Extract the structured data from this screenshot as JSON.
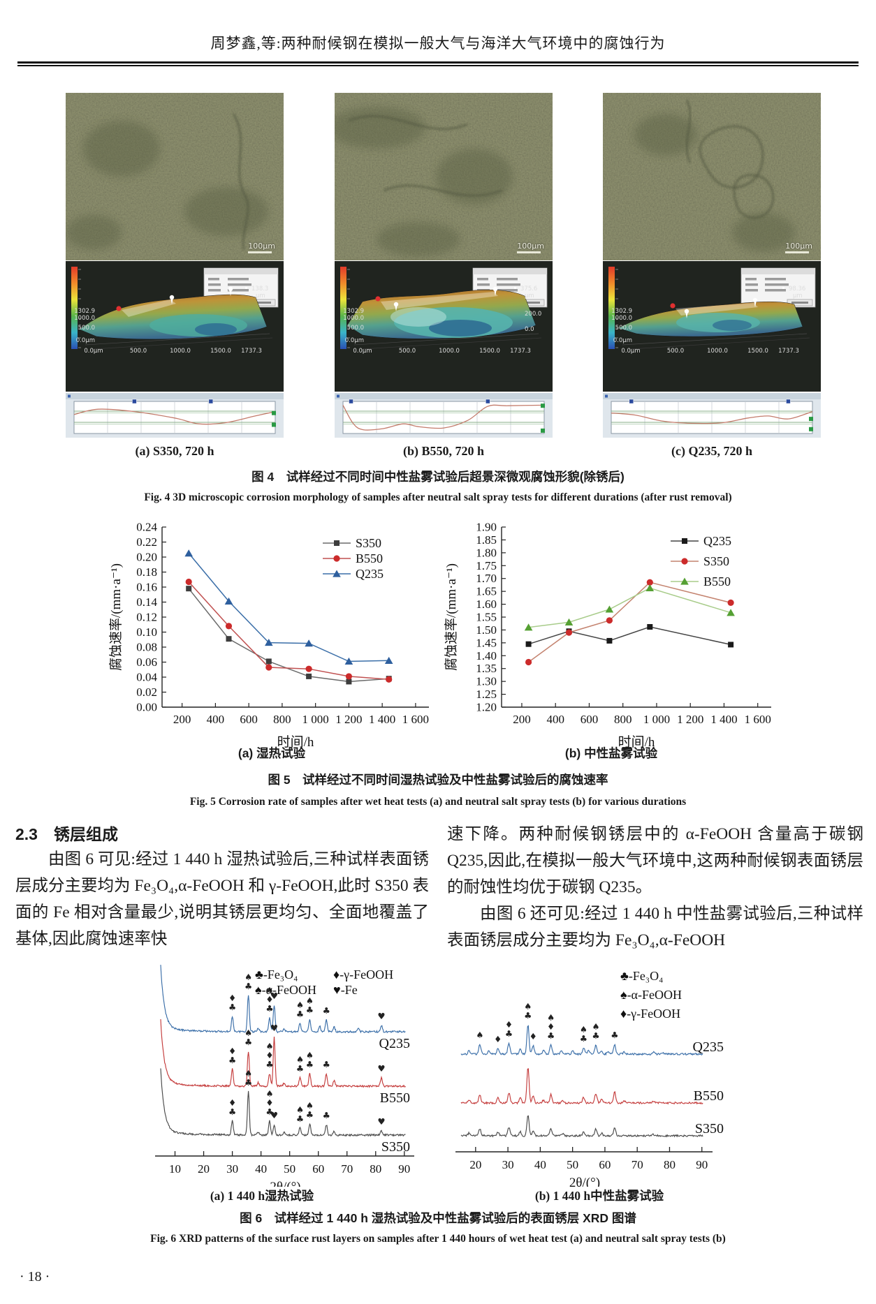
{
  "header": {
    "title": "周梦鑫,等:两种耐候钢在模拟一般大气与海洋大气环境中的腐蚀行为"
  },
  "fig4": {
    "panels": [
      {
        "caption": "(a) S350, 720 h",
        "scale_label": "100μm",
        "axis_left": [
          "1302.9",
          "1000.0",
          "500.0",
          "0.0μm"
        ],
        "axis_bottom": [
          "0.0μm",
          "500.0",
          "1000.0",
          "1500.0",
          "1737.3"
        ],
        "marker_labels": [
          "138.3",
          "μm"
        ],
        "profile": {
          "blue_markers": [
            0.3,
            0.68
          ],
          "green_markers": [
            0.35,
            0.75
          ],
          "curve": [
            [
              0,
              0.4
            ],
            [
              0.12,
              0.22
            ],
            [
              0.3,
              0.3
            ],
            [
              0.5,
              0.52
            ],
            [
              0.62,
              0.72
            ],
            [
              0.75,
              0.68
            ],
            [
              0.9,
              0.45
            ],
            [
              1,
              0.3
            ]
          ]
        }
      },
      {
        "caption": "(b) B550, 720 h",
        "scale_label": "100μm",
        "axis_left": [
          "1302.9",
          "1000.0",
          "500.0",
          "0.0μm"
        ],
        "axis_bottom": [
          "0.0μm",
          "500.0",
          "1000.0",
          "1500.0",
          "1737.3"
        ],
        "marker_labels": [
          "375.6",
          "μm",
          "200.0",
          "0.0"
        ],
        "profile": {
          "blue_markers": [
            0.04,
            0.72
          ],
          "green_markers": [
            0.1,
            0.95
          ],
          "curve": [
            [
              0,
              0.08
            ],
            [
              0.05,
              0.7
            ],
            [
              0.1,
              0.92
            ],
            [
              0.2,
              0.88
            ],
            [
              0.3,
              0.72
            ],
            [
              0.38,
              0.82
            ],
            [
              0.5,
              0.86
            ],
            [
              0.62,
              0.6
            ],
            [
              0.72,
              0.12
            ],
            [
              0.82,
              0.1
            ],
            [
              1,
              0.08
            ]
          ]
        }
      },
      {
        "caption": "(c) Q235, 720 h",
        "scale_label": "100μm",
        "axis_left": [
          "1302.9",
          "1000.0",
          "500.0",
          "0.0μm"
        ],
        "axis_bottom": [
          "0.0μm",
          "500.0",
          "1000.0",
          "1500.0",
          "1737.3"
        ],
        "marker_labels": [
          "98.36",
          "μm"
        ],
        "profile": {
          "blue_markers": [
            0.1,
            0.88
          ],
          "green_markers": [
            0.55,
            0.9
          ],
          "curve": [
            [
              0,
              0.35
            ],
            [
              0.12,
              0.42
            ],
            [
              0.25,
              0.62
            ],
            [
              0.4,
              0.7
            ],
            [
              0.55,
              0.68
            ],
            [
              0.68,
              0.52
            ],
            [
              0.78,
              0.45
            ],
            [
              0.88,
              0.55
            ],
            [
              1,
              0.3
            ]
          ]
        }
      }
    ],
    "caption_cn": "图 4　试样经过不同时间中性盐雾试验后超景深微观腐蚀形貌(除锈后)",
    "caption_en": "Fig. 4   3D microscopic corrosion morphology of samples after neutral salt spray tests for different durations (after rust removal)"
  },
  "fig5": {
    "caption_a": "(a) 湿热试验",
    "caption_b": "(b) 中性盐雾试验",
    "caption_cn": "图 5　试样经过不同时间湿热试验及中性盐雾试验后的腐蚀速率",
    "caption_en": "Fig. 5   Corrosion rate of samples after wet heat tests (a) and neutral salt spray tests (b) for various durations"
  },
  "section": {
    "heading": "2.3　锈层组成",
    "left_para": "由图 6 可见:经过 1 440 h 湿热试验后,三种试样表面锈层成分主要均为 Fe₃O₄,α-FeOOH 和 γ-FeOOH,此时 S350 表面的 Fe 相对含量最少,说明其锈层更均匀、全面地覆盖了基体,因此腐蚀速率快",
    "right_para_1": "速下降。两种耐候钢锈层中的 α-FeOOH 含量高于碳钢 Q235,因此,在模拟一般大气环境中,这两种耐候钢表面锈层的耐蚀性均优于碳钢 Q235。",
    "right_para_2": "由图 6 还可见:经过 1 440 h 中性盐雾试验后,三种试样表面锈层成分主要均为 Fe₃O₄,α-FeOOH"
  },
  "fig6": {
    "caption_a": "(a) 1 440 h湿热试验",
    "caption_b": "(b) 1 440 h中性盐雾试验",
    "caption_cn": "图 6　试样经过 1 440 h 湿热试验及中性盐雾试验后的表面锈层 XRD 图谱",
    "caption_en": "Fig. 6   XRD patterns of the surface rust layers on samples after 1 440 hours of wet heat test (a) and neutral salt spray tests (b)"
  },
  "page_number": "· 18 ·",
  "chart_data": [
    {
      "id": "fig5a",
      "type": "line",
      "title": "(a) 湿热试验",
      "xlabel": "时间/h",
      "ylabel": "腐蚀速率/(mm·a⁻¹)",
      "xlim": [
        80,
        1680
      ],
      "ylim": [
        0,
        0.24
      ],
      "xticks": [
        200,
        400,
        600,
        800,
        1000,
        1200,
        1400,
        1600
      ],
      "xtick_labels": [
        "200",
        "400",
        "600",
        "800",
        "1 000",
        "1 200",
        "1 400",
        "1 600"
      ],
      "ytick_step": 0.02,
      "x": [
        240,
        480,
        720,
        960,
        1200,
        1440
      ],
      "series": [
        {
          "name": "S350",
          "marker": "square",
          "marker_color": "#3d3d3d",
          "line_color": "#6a6a6a",
          "values": [
            0.158,
            0.091,
            0.061,
            0.041,
            0.034,
            0.038
          ]
        },
        {
          "name": "B550",
          "marker": "circle",
          "marker_color": "#cc2b2b",
          "line_color": "#c05050",
          "values": [
            0.167,
            0.108,
            0.053,
            0.051,
            0.041,
            0.037
          ]
        },
        {
          "name": "Q235",
          "marker": "triangle",
          "marker_color": "#2e5f9e",
          "line_color": "#3a6ea8",
          "values": [
            0.205,
            0.141,
            0.086,
            0.085,
            0.061,
            0.062
          ]
        }
      ],
      "grid": false,
      "legend_position": "upper right inside"
    },
    {
      "id": "fig5b",
      "type": "line",
      "title": "(b) 中性盐雾试验",
      "xlabel": "时间/h",
      "ylabel": "腐蚀速率/(mm·a⁻¹)",
      "xlim": [
        80,
        1680
      ],
      "ylim": [
        1.2,
        1.9
      ],
      "xticks": [
        200,
        400,
        600,
        800,
        1000,
        1200,
        1400,
        1600
      ],
      "xtick_labels": [
        "200",
        "400",
        "600",
        "800",
        "1 000",
        "1 200",
        "1 400",
        "1 600"
      ],
      "ytick_step": 0.05,
      "x": [
        240,
        480,
        720,
        960,
        1440
      ],
      "series": [
        {
          "name": "Q235",
          "marker": "square",
          "marker_color": "#1a1a1a",
          "line_color": "#444444",
          "values": [
            1.445,
            1.495,
            1.458,
            1.512,
            1.443
          ]
        },
        {
          "name": "S350",
          "marker": "circle",
          "marker_color": "#cc2b2b",
          "line_color": "#c4836f",
          "values": [
            1.375,
            1.49,
            1.537,
            1.685,
            1.606
          ]
        },
        {
          "name": "B550",
          "marker": "triangle",
          "marker_color": "#55a033",
          "line_color": "#a8cc8a",
          "values": [
            1.51,
            1.53,
            1.58,
            1.663,
            1.567
          ]
        }
      ],
      "grid": false,
      "legend_position": "upper right inside"
    },
    {
      "id": "fig6a",
      "type": "xrd",
      "title": "(a) 1 440 h湿热试验",
      "xlabel": "2θ/(°)",
      "xlim": [
        5,
        92
      ],
      "xticks": [
        10,
        20,
        30,
        40,
        50,
        60,
        70,
        80,
        90
      ],
      "left_spike": 90,
      "traces": [
        {
          "name": "Q235",
          "color": "#3a6ea8",
          "peaks": [
            [
              30,
              22
            ],
            [
              35.6,
              52
            ],
            [
              39,
              5
            ],
            [
              43,
              20
            ],
            [
              44.6,
              38
            ],
            [
              48,
              4
            ],
            [
              53.6,
              12
            ],
            [
              57,
              18
            ],
            [
              60.5,
              8
            ],
            [
              62.8,
              17
            ],
            [
              65.5,
              7
            ],
            [
              74,
              4
            ],
            [
              82,
              9
            ]
          ]
        },
        {
          "name": "B550",
          "color": "#c43b3b",
          "peaks": [
            [
              30,
              24
            ],
            [
              35.6,
              50
            ],
            [
              39,
              5
            ],
            [
              43,
              18
            ],
            [
              44.6,
              70
            ],
            [
              48,
              4
            ],
            [
              53.6,
              12
            ],
            [
              57,
              18
            ],
            [
              62.8,
              18
            ],
            [
              65.5,
              8
            ],
            [
              82,
              12
            ]
          ]
        },
        {
          "name": "S350",
          "color": "#4a4a4a",
          "peaks": [
            [
              30,
              20
            ],
            [
              35.6,
              62
            ],
            [
              39,
              4
            ],
            [
              43,
              20
            ],
            [
              44.6,
              15
            ],
            [
              48,
              4
            ],
            [
              53.6,
              10
            ],
            [
              57,
              16
            ],
            [
              62.8,
              15
            ],
            [
              65.5,
              6
            ],
            [
              82,
              6
            ]
          ]
        }
      ],
      "annotations": [
        {
          "x": 30,
          "stack": [
            "♦",
            "♣"
          ]
        },
        {
          "x": 35.6,
          "stack": [
            "♠",
            "♣"
          ]
        },
        {
          "x": 43,
          "stack": [
            "♠",
            "♦",
            "♣"
          ]
        },
        {
          "x": 44.6,
          "stack": [
            "♥"
          ]
        },
        {
          "x": 53.6,
          "stack": [
            "♠",
            "♣"
          ]
        },
        {
          "x": 57,
          "stack": [
            "♠",
            "♣"
          ]
        },
        {
          "x": 62.8,
          "stack": [
            "♣"
          ]
        },
        {
          "x": 82,
          "stack": [
            "♥"
          ]
        }
      ],
      "annotate_traces": [
        0,
        1,
        2
      ],
      "legend": [
        {
          "sym": "♣",
          "label": "-Fe₃O₄"
        },
        {
          "sym": "♦",
          "label": "-γ-FeOOH"
        },
        {
          "sym": "♠",
          "label": "-α-FeOOH"
        },
        {
          "sym": "♥",
          "label": "-Fe"
        }
      ],
      "legend_cols": 2
    },
    {
      "id": "fig6b",
      "type": "xrd",
      "title": "(b) 1 440 h中性盐雾试验",
      "xlabel": "2θ/(°)",
      "xlim": [
        15.5,
        92
      ],
      "xticks": [
        20,
        30,
        40,
        50,
        60,
        70,
        80,
        90
      ],
      "left_spike": 0,
      "traces": [
        {
          "name": "Q235",
          "color": "#3a6ea8",
          "peaks": [
            [
              18,
              5
            ],
            [
              21.3,
              14
            ],
            [
              24,
              4
            ],
            [
              26.9,
              8
            ],
            [
              30.3,
              16
            ],
            [
              33.8,
              7
            ],
            [
              36.2,
              42
            ],
            [
              37.8,
              12
            ],
            [
              41,
              5
            ],
            [
              43.3,
              13
            ],
            [
              46.5,
              4
            ],
            [
              50,
              4
            ],
            [
              53.4,
              9
            ],
            [
              55,
              5
            ],
            [
              57.2,
              13
            ],
            [
              59,
              5
            ],
            [
              61,
              4
            ],
            [
              63,
              14
            ],
            [
              66,
              3
            ],
            [
              75,
              3
            ],
            [
              78,
              2
            ]
          ]
        },
        {
          "name": "B550",
          "color": "#c43b3b",
          "peaks": [
            [
              18,
              4
            ],
            [
              21.3,
              12
            ],
            [
              26.9,
              7
            ],
            [
              30.3,
              15
            ],
            [
              33.8,
              8
            ],
            [
              36.2,
              52
            ],
            [
              37.8,
              10
            ],
            [
              41,
              4
            ],
            [
              43.3,
              12
            ],
            [
              47,
              4
            ],
            [
              53.4,
              8
            ],
            [
              57.2,
              14
            ],
            [
              59,
              5
            ],
            [
              63,
              16
            ],
            [
              66,
              3
            ],
            [
              75,
              3
            ]
          ]
        },
        {
          "name": "S350",
          "color": "#4a4a4a",
          "peaks": [
            [
              18,
              4
            ],
            [
              21.3,
              10
            ],
            [
              26.9,
              6
            ],
            [
              30.3,
              12
            ],
            [
              33.8,
              6
            ],
            [
              36.2,
              30
            ],
            [
              37.8,
              8
            ],
            [
              43.3,
              10
            ],
            [
              47,
              3
            ],
            [
              53.4,
              6
            ],
            [
              57.2,
              10
            ],
            [
              59,
              4
            ],
            [
              63,
              12
            ],
            [
              75,
              2
            ]
          ]
        }
      ],
      "annotations": [
        {
          "x": 21.3,
          "stack": [
            "♠"
          ]
        },
        {
          "x": 26.9,
          "stack": [
            "♦"
          ]
        },
        {
          "x": 30.3,
          "stack": [
            "♦",
            "♣"
          ]
        },
        {
          "x": 36.2,
          "stack": [
            "♠",
            "♣"
          ]
        },
        {
          "x": 37.8,
          "stack": [
            "♦"
          ]
        },
        {
          "x": 43.3,
          "stack": [
            "♠",
            "♦",
            "♣"
          ]
        },
        {
          "x": 53.4,
          "stack": [
            "♠",
            "♣"
          ]
        },
        {
          "x": 57.2,
          "stack": [
            "♠",
            "♣"
          ]
        },
        {
          "x": 63,
          "stack": [
            "♣"
          ]
        }
      ],
      "annotate_traces": [
        0
      ],
      "legend": [
        {
          "sym": "♣",
          "label": "-Fe₃O₄"
        },
        {
          "sym": "♠",
          "label": "-α-FeOOH"
        },
        {
          "sym": "♦",
          "label": "-γ-FeOOH"
        }
      ],
      "legend_cols": 1
    }
  ]
}
